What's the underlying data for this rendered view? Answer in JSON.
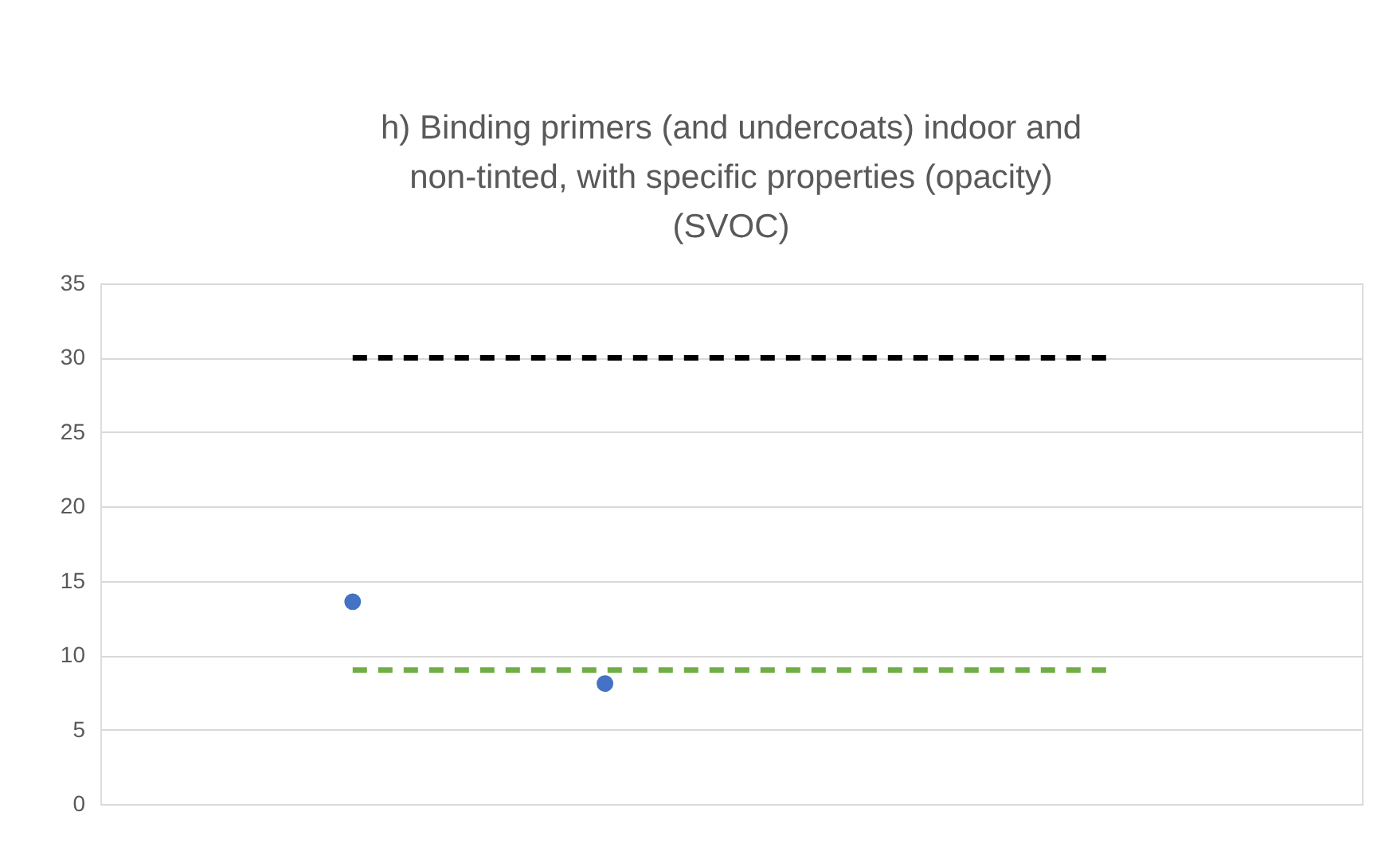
{
  "chart_data": {
    "type": "scatter",
    "title": "h) Binding primers (and undercoats) indoor and\nnon-tinted, with specific properties (opacity)\n(SVOC)",
    "categories": [
      null,
      null,
      null,
      null
    ],
    "series": [
      {
        "type": "line",
        "color": "#000000",
        "line_style": "dashed",
        "marker": "none",
        "values": [
          30,
          30,
          30,
          30
        ]
      },
      {
        "type": "line",
        "color": "#70ad47",
        "line_style": "dashed",
        "marker": "none",
        "values": [
          9,
          9,
          9,
          9
        ]
      },
      {
        "color": "#4472c4",
        "marker": "circle",
        "values": [
          13.6,
          8.1,
          null,
          null
        ]
      }
    ],
    "ylim": [
      0,
      35
    ],
    "yticks": [
      0,
      5,
      10,
      15,
      20,
      25,
      30,
      35
    ],
    "grid": "y",
    "legend": false,
    "tick_labels": "y"
  }
}
